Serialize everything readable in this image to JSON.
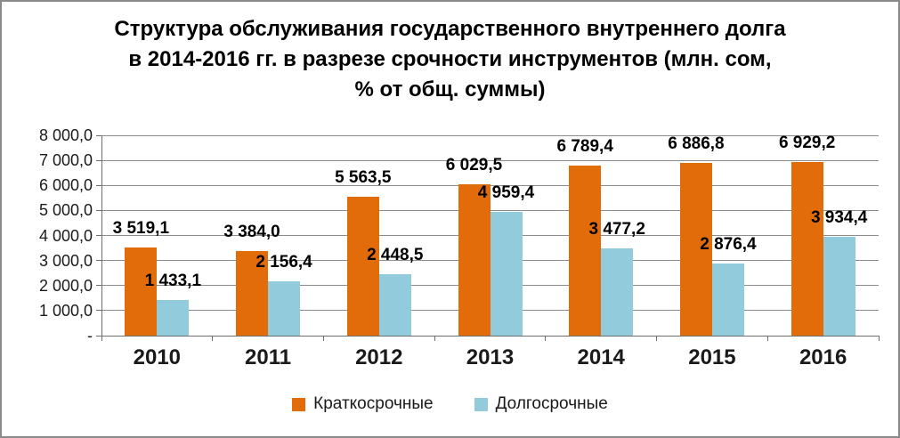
{
  "title": {
    "lines": [
      "Структура обслуживания государственного внутреннего долга",
      "в 2014-2016 гг. в разрезе срочности инструментов (млн. сом,",
      "% от общ. суммы)"
    ],
    "full": "Структура обслуживания государственного внутреннего долга в 2014-2016 гг. в разрезе срочности инструментов (млн. сом, % от общ. суммы)"
  },
  "chart_data": {
    "type": "bar",
    "categories": [
      "2010",
      "2011",
      "2012",
      "2013",
      "2014",
      "2015",
      "2016"
    ],
    "series": [
      {
        "name": "Краткосрочные",
        "color": "#E36C0A",
        "values": [
          3519.1,
          3384.0,
          5563.5,
          6029.5,
          6789.4,
          6886.8,
          6929.2
        ],
        "labels": [
          "3 519,1",
          "3 384,0",
          "5 563,5",
          "6 029,5",
          "6 789,4",
          "6 886,8",
          "6 929,2"
        ]
      },
      {
        "name": "Долгосрочные",
        "color": "#92CBDC",
        "values": [
          1433.1,
          2156.4,
          2448.5,
          4959.4,
          3477.2,
          2876.4,
          3934.4
        ],
        "labels": [
          "1 433,1",
          "2 156,4",
          "2 448,5",
          "4 959,4",
          "3 477,2",
          "2 876,4",
          "3 934,4"
        ]
      }
    ],
    "ylim": [
      0,
      8000
    ],
    "y_ticks": {
      "step": 1000,
      "labels": [
        "-",
        "1 000,0",
        "2 000,0",
        "3 000,0",
        "4 000,0",
        "5 000,0",
        "6 000,0",
        "7 000,0",
        "8 000,0"
      ]
    },
    "grid": "horizontal",
    "legend_position": "bottom"
  },
  "colors": {
    "frame_border": "#8a8a8a",
    "gridline": "#8c8c8c",
    "axis": "#6f6f6f",
    "text": "#1a1a1a",
    "background": "#ffffff"
  }
}
